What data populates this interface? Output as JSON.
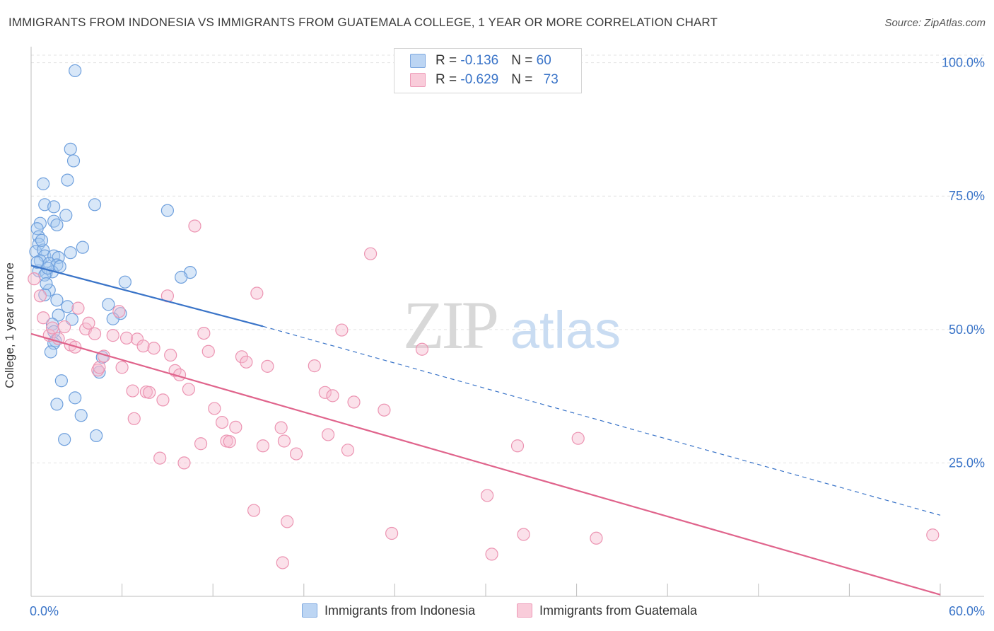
{
  "title": "IMMIGRANTS FROM INDONESIA VS IMMIGRANTS FROM GUATEMALA COLLEGE, 1 YEAR OR MORE CORRELATION CHART",
  "source": "Source: ZipAtlas.com",
  "watermark": {
    "zip": "ZIP",
    "atlas": "atlas"
  },
  "colors": {
    "indonesia_fill": "#a9c9f0",
    "indonesia_stroke": "#6fa0dd",
    "indonesia_line": "#3a74c8",
    "guatemala_fill": "#f6bcd0",
    "guatemala_stroke": "#ec94b2",
    "guatemala_line": "#e0648c",
    "axis_label_blue": "#3a74c8",
    "grid": "#e3e3e3"
  },
  "legend": {
    "rows": [
      {
        "r_label": "R = ",
        "r_value": "-0.136",
        "n_label": "N = ",
        "n_value": "60"
      },
      {
        "r_label": "R = ",
        "r_value": "-0.629",
        "n_label": "N = ",
        "n_value": "73"
      }
    ]
  },
  "bottom_legend": [
    {
      "label": "Immigrants from Indonesia"
    },
    {
      "label": "Immigrants from Guatemala"
    }
  ],
  "chart_data": {
    "type": "scatter",
    "title": "IMMIGRANTS FROM INDONESIA VS IMMIGRANTS FROM GUATEMALA COLLEGE, 1 YEAR OR MORE CORRELATION CHART",
    "xlabel": "",
    "ylabel": "College, 1 year or more",
    "xlim": [
      0,
      60
    ],
    "ylim": [
      0,
      103
    ],
    "x_tick_labels": [
      "0.0%",
      "60.0%"
    ],
    "y_ticks": [
      25,
      50,
      75,
      100
    ],
    "y_tick_labels": [
      "25.0%",
      "50.0%",
      "75.0%",
      "100.0%"
    ],
    "grid": true,
    "series": [
      {
        "name": "Immigrants from Indonesia",
        "r": -0.136,
        "n": 60,
        "trend": {
          "x": [
            0,
            15.3
          ],
          "y": [
            62.0,
            50.6
          ],
          "dashed_extension_to": [
            60,
            15.2
          ]
        },
        "points": [
          [
            2.9,
            98.5
          ],
          [
            2.6,
            83.8
          ],
          [
            2.8,
            81.6
          ],
          [
            2.4,
            78.0
          ],
          [
            0.8,
            77.3
          ],
          [
            0.9,
            73.4
          ],
          [
            1.5,
            73.0
          ],
          [
            4.2,
            73.4
          ],
          [
            2.3,
            71.4
          ],
          [
            9.0,
            72.3
          ],
          [
            1.5,
            70.3
          ],
          [
            0.6,
            69.9
          ],
          [
            0.4,
            68.9
          ],
          [
            1.7,
            69.6
          ],
          [
            0.5,
            67.4
          ],
          [
            0.5,
            66.0
          ],
          [
            3.4,
            65.4
          ],
          [
            0.3,
            64.6
          ],
          [
            0.8,
            64.9
          ],
          [
            0.9,
            63.8
          ],
          [
            1.5,
            63.8
          ],
          [
            1.8,
            63.5
          ],
          [
            2.6,
            64.4
          ],
          [
            0.6,
            62.9
          ],
          [
            1.2,
            62.4
          ],
          [
            1.7,
            62.1
          ],
          [
            0.5,
            61.0
          ],
          [
            1.0,
            60.6
          ],
          [
            1.4,
            60.8
          ],
          [
            0.9,
            60.2
          ],
          [
            10.5,
            60.7
          ],
          [
            9.9,
            59.8
          ],
          [
            6.2,
            58.9
          ],
          [
            1.2,
            57.4
          ],
          [
            0.9,
            56.5
          ],
          [
            1.7,
            55.5
          ],
          [
            5.1,
            54.7
          ],
          [
            2.4,
            54.3
          ],
          [
            1.8,
            52.7
          ],
          [
            5.9,
            53.0
          ],
          [
            5.4,
            52.0
          ],
          [
            2.7,
            51.9
          ],
          [
            1.4,
            51.0
          ],
          [
            1.5,
            49.6
          ],
          [
            1.6,
            47.9
          ],
          [
            1.5,
            47.4
          ],
          [
            1.3,
            45.8
          ],
          [
            4.7,
            44.8
          ],
          [
            4.5,
            42.0
          ],
          [
            2.0,
            40.4
          ],
          [
            2.9,
            37.2
          ],
          [
            1.7,
            36.0
          ],
          [
            3.3,
            33.9
          ],
          [
            4.3,
            30.1
          ],
          [
            2.2,
            29.4
          ],
          [
            0.4,
            62.6
          ],
          [
            1.1,
            61.5
          ],
          [
            0.7,
            66.7
          ],
          [
            1.9,
            61.8
          ],
          [
            1.0,
            58.6
          ]
        ]
      },
      {
        "name": "Immigrants from Guatemala",
        "r": -0.629,
        "n": 73,
        "trend": {
          "x": [
            0,
            60
          ],
          "y": [
            49.2,
            0.3
          ]
        },
        "points": [
          [
            0.2,
            59.5
          ],
          [
            0.6,
            56.3
          ],
          [
            0.8,
            52.2
          ],
          [
            1.2,
            48.9
          ],
          [
            1.4,
            50.3
          ],
          [
            1.8,
            48.3
          ],
          [
            2.2,
            50.5
          ],
          [
            2.6,
            47.1
          ],
          [
            3.1,
            54.0
          ],
          [
            3.6,
            50.1
          ],
          [
            3.8,
            51.2
          ],
          [
            4.2,
            49.2
          ],
          [
            4.4,
            42.4
          ],
          [
            4.5,
            42.9
          ],
          [
            4.8,
            45.0
          ],
          [
            5.4,
            48.9
          ],
          [
            5.8,
            53.4
          ],
          [
            6.0,
            42.9
          ],
          [
            6.3,
            48.4
          ],
          [
            6.7,
            38.5
          ],
          [
            6.8,
            33.3
          ],
          [
            7.0,
            48.2
          ],
          [
            7.4,
            46.9
          ],
          [
            7.6,
            38.3
          ],
          [
            7.8,
            38.2
          ],
          [
            8.1,
            46.5
          ],
          [
            8.5,
            25.9
          ],
          [
            8.7,
            36.8
          ],
          [
            9.0,
            56.3
          ],
          [
            9.2,
            45.2
          ],
          [
            9.5,
            42.3
          ],
          [
            9.8,
            41.5
          ],
          [
            10.1,
            25.0
          ],
          [
            10.4,
            38.8
          ],
          [
            10.8,
            69.4
          ],
          [
            11.2,
            28.6
          ],
          [
            11.4,
            49.3
          ],
          [
            11.7,
            45.9
          ],
          [
            12.1,
            35.2
          ],
          [
            12.6,
            32.6
          ],
          [
            12.9,
            29.1
          ],
          [
            13.1,
            29.0
          ],
          [
            13.5,
            31.7
          ],
          [
            13.9,
            44.9
          ],
          [
            14.2,
            43.9
          ],
          [
            14.7,
            16.1
          ],
          [
            14.9,
            56.8
          ],
          [
            15.3,
            28.2
          ],
          [
            15.6,
            43.1
          ],
          [
            16.5,
            31.6
          ],
          [
            16.7,
            29.1
          ],
          [
            16.9,
            14.0
          ],
          [
            16.6,
            6.3
          ],
          [
            17.5,
            26.7
          ],
          [
            18.7,
            43.2
          ],
          [
            19.4,
            38.2
          ],
          [
            19.6,
            30.3
          ],
          [
            19.9,
            37.6
          ],
          [
            20.5,
            49.9
          ],
          [
            20.9,
            27.4
          ],
          [
            21.3,
            36.4
          ],
          [
            22.4,
            64.2
          ],
          [
            23.3,
            34.9
          ],
          [
            23.8,
            11.8
          ],
          [
            25.8,
            46.3
          ],
          [
            30.1,
            18.9
          ],
          [
            30.4,
            7.9
          ],
          [
            32.1,
            28.2
          ],
          [
            32.5,
            11.6
          ],
          [
            36.1,
            29.6
          ],
          [
            37.3,
            10.9
          ],
          [
            59.5,
            11.5
          ],
          [
            2.9,
            46.7
          ]
        ]
      }
    ]
  }
}
